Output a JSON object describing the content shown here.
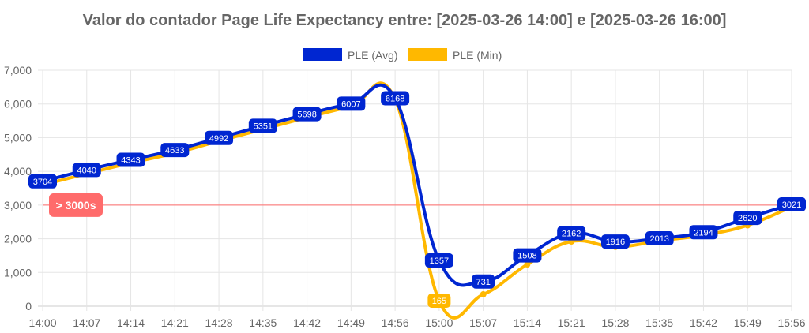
{
  "chart_data": {
    "type": "line",
    "title": "Valor do contador Page Life Expectancy entre: [2025-03-26 14:00] e [2025-03-26 16:00]",
    "categories": [
      "14:00",
      "14:07",
      "14:14",
      "14:21",
      "14:28",
      "14:35",
      "14:42",
      "14:49",
      "14:56",
      "15:00",
      "15:07",
      "15:14",
      "15:21",
      "15:28",
      "15:35",
      "15:42",
      "15:49",
      "15:56"
    ],
    "series": [
      {
        "name": "PLE (Avg)",
        "color": "#0026d1",
        "values": [
          3704,
          4040,
          4343,
          4633,
          4992,
          5351,
          5698,
          6007,
          6168,
          1357,
          731,
          1508,
          2162,
          1916,
          2013,
          2194,
          2620,
          3021
        ]
      },
      {
        "name": "PLE (Min)",
        "color": "#ffb800",
        "values": [
          3600,
          3930,
          4250,
          4540,
          4900,
          5250,
          5600,
          5920,
          6140,
          165,
          350,
          1240,
          1920,
          1760,
          1940,
          2110,
          2400,
          2950
        ],
        "labeled_values": {
          "9": 165
        }
      }
    ],
    "ylim": [
      0,
      7000
    ],
    "yticks": [
      "0",
      "1,000",
      "2,000",
      "3,000",
      "4,000",
      "5,000",
      "6,000",
      "7,000"
    ],
    "grid": true,
    "legend": "top-center",
    "threshold": {
      "value": 3000,
      "label": "> 3000s",
      "color": "#ff6b6b"
    }
  }
}
